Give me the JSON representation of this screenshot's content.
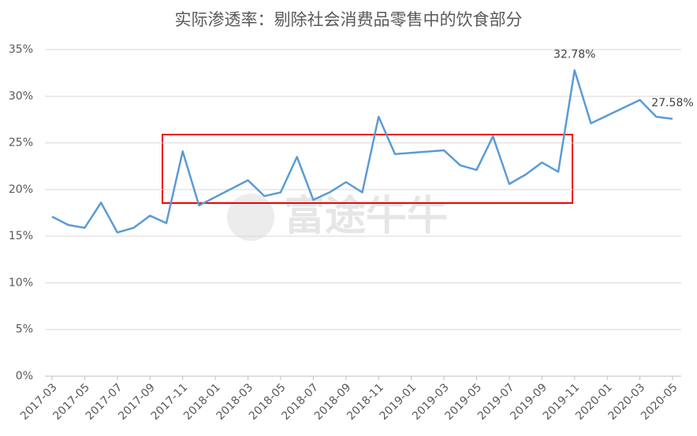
{
  "chart_data": {
    "type": "line",
    "title": "实际渗透率：剔除社会消费品零售中的饮食部分",
    "watermark": "富途牛牛",
    "x": [
      "2017-03",
      "2017-04",
      "2017-05",
      "2017-06",
      "2017-07",
      "2017-08",
      "2017-09",
      "2017-10",
      "2017-11",
      "2017-12",
      "2018-03",
      "2018-04",
      "2018-05",
      "2018-06",
      "2018-07",
      "2018-08",
      "2018-09",
      "2018-10",
      "2018-11",
      "2018-12",
      "2019-03",
      "2019-04",
      "2019-05",
      "2019-06",
      "2019-07",
      "2019-08",
      "2019-09",
      "2019-10",
      "2019-11",
      "2019-12",
      "2020-03",
      "2020-04",
      "2020-05"
    ],
    "series": [
      {
        "name": "实际渗透率",
        "color": "#5b9bd5",
        "values": [
          17.1,
          16.2,
          15.9,
          18.6,
          15.4,
          15.9,
          17.2,
          16.4,
          24.1,
          18.3,
          21.0,
          19.3,
          19.7,
          23.5,
          18.9,
          19.7,
          20.8,
          19.7,
          27.8,
          23.8,
          24.2,
          22.6,
          22.1,
          25.7,
          20.6,
          21.6,
          22.9,
          21.9,
          32.78,
          27.1,
          29.6,
          27.8,
          27.58
        ],
        "value_labels": [
          null,
          null,
          null,
          null,
          null,
          null,
          null,
          null,
          null,
          null,
          null,
          null,
          null,
          null,
          null,
          null,
          null,
          null,
          null,
          null,
          null,
          null,
          null,
          null,
          null,
          null,
          null,
          null,
          "32.78%",
          null,
          null,
          null,
          "27.58%"
        ]
      }
    ],
    "xlim": [
      "2017-03",
      "2020-05"
    ],
    "xticks": [
      "2017-03",
      "2017-05",
      "2017-07",
      "2017-09",
      "2017-11",
      "2018-01",
      "2018-03",
      "2018-05",
      "2018-07",
      "2018-09",
      "2018-11",
      "2019-01",
      "2019-03",
      "2019-05",
      "2019-07",
      "2019-09",
      "2019-11",
      "2020-01",
      "2020-03",
      "2020-05"
    ],
    "ylim": [
      0,
      35
    ],
    "yticks": [
      {
        "value": 0,
        "label": "0%"
      },
      {
        "value": 5,
        "label": "5%"
      },
      {
        "value": 10,
        "label": "10%"
      },
      {
        "value": 15,
        "label": "15%"
      },
      {
        "value": 20,
        "label": "20%"
      },
      {
        "value": 25,
        "label": "25%"
      },
      {
        "value": 30,
        "label": "30%"
      },
      {
        "value": 35,
        "label": "35%"
      }
    ],
    "grid": true
  }
}
